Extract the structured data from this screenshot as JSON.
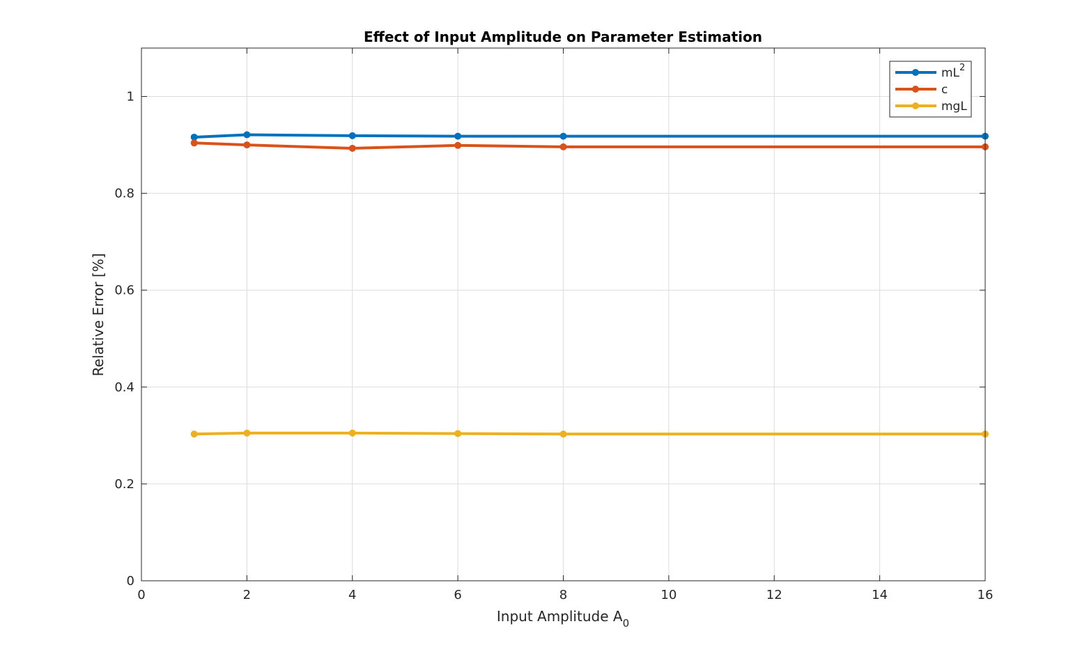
{
  "chart_data": {
    "type": "line",
    "title": "Effect of Input Amplitude on Parameter Estimation",
    "xlabel": "Input Amplitude A",
    "xlabel_subscript": "0",
    "ylabel": "Relative Error [%]",
    "xlim": [
      0,
      16
    ],
    "ylim": [
      0,
      1.1
    ],
    "xticks": [
      0,
      2,
      4,
      6,
      8,
      10,
      12,
      14,
      16
    ],
    "yticks": [
      0,
      0.2,
      0.4,
      0.6,
      0.8,
      1
    ],
    "ytick_labels": [
      "0",
      "0.2",
      "0.4",
      "0.6",
      "0.8",
      "1"
    ],
    "grid": true,
    "legend_placement": "top-right",
    "x": [
      1,
      2,
      4,
      6,
      8,
      16
    ],
    "series": [
      {
        "name": "mL",
        "name_superscript": "2",
        "color": "#0072BD",
        "values": [
          0.916,
          0.921,
          0.919,
          0.918,
          0.918,
          0.918
        ]
      },
      {
        "name": "c",
        "color": "#D95319",
        "values": [
          0.904,
          0.9,
          0.893,
          0.899,
          0.896,
          0.896
        ]
      },
      {
        "name": "mgL",
        "color": "#EDB120",
        "values": [
          0.303,
          0.305,
          0.305,
          0.304,
          0.303,
          0.303
        ]
      }
    ]
  }
}
